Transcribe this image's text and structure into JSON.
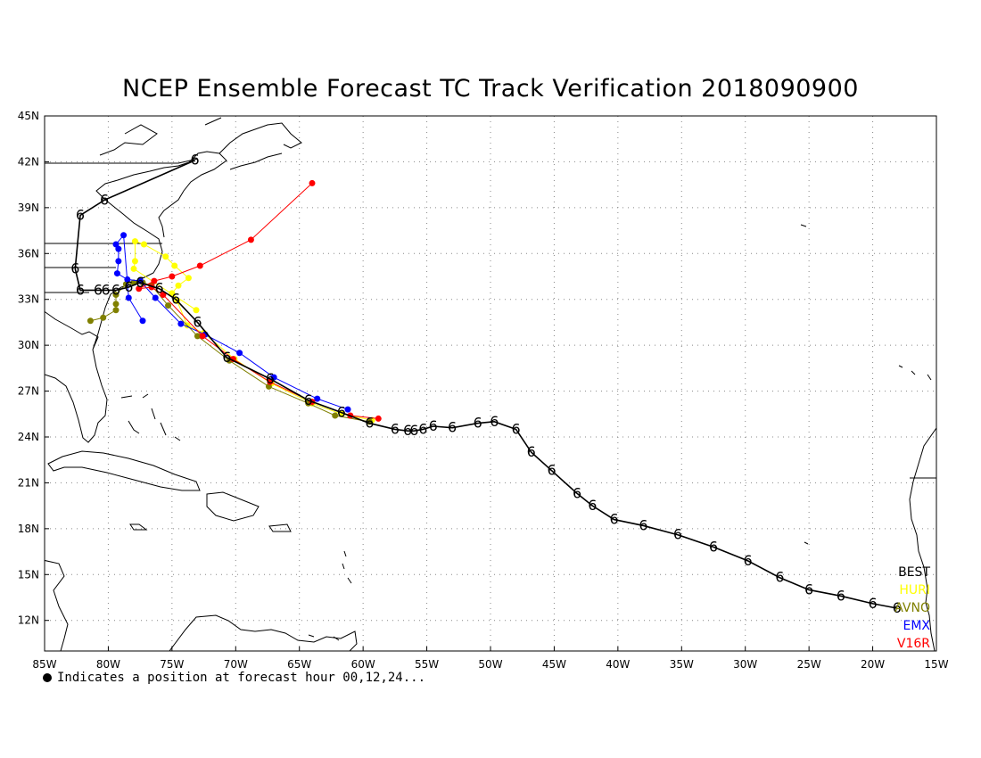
{
  "chart_data": {
    "type": "scatter",
    "title": "NCEP Ensemble Forecast TC Track Verification 2018090900",
    "xlabel": "",
    "ylabel": "",
    "xlim": [
      -85,
      -15
    ],
    "ylim": [
      10,
      45
    ],
    "x_tick_labels": [
      "85W",
      "80W",
      "75W",
      "70W",
      "65W",
      "60W",
      "55W",
      "50W",
      "45W",
      "40W",
      "35W",
      "30W",
      "25W",
      "20W",
      "15W"
    ],
    "y_tick_labels": [
      "12N",
      "15N",
      "18N",
      "21N",
      "24N",
      "27N",
      "30N",
      "33N",
      "36N",
      "39N",
      "42N",
      "45N"
    ],
    "grid": true,
    "legend_position": "bottom-right",
    "footnote": "Indicates a position at forecast hour 00,12,24...",
    "series": [
      {
        "name": "BEST",
        "color": "#000000",
        "points": [
          [
            -18.1,
            12.8
          ],
          [
            -20.0,
            13.1
          ],
          [
            -22.5,
            13.6
          ],
          [
            -25.0,
            14.0
          ],
          [
            -27.3,
            14.8
          ],
          [
            -29.8,
            15.9
          ],
          [
            -32.5,
            16.8
          ],
          [
            -35.3,
            17.6
          ],
          [
            -38.0,
            18.2
          ],
          [
            -40.3,
            18.6
          ],
          [
            -42.0,
            19.5
          ],
          [
            -43.2,
            20.3
          ],
          [
            -45.2,
            21.8
          ],
          [
            -46.8,
            23.0
          ],
          [
            -48.0,
            24.5
          ],
          [
            -49.7,
            25.0
          ],
          [
            -51.0,
            24.9
          ],
          [
            -53.0,
            24.6
          ],
          [
            -54.5,
            24.7
          ],
          [
            -55.3,
            24.5
          ],
          [
            -56.0,
            24.4
          ],
          [
            -56.5,
            24.4
          ],
          [
            -57.5,
            24.5
          ],
          [
            -59.5,
            24.9
          ],
          [
            -61.7,
            25.6
          ],
          [
            -64.3,
            26.4
          ],
          [
            -67.3,
            27.8
          ],
          [
            -70.7,
            29.2
          ],
          [
            -73.0,
            31.5
          ],
          [
            -74.7,
            33.0
          ],
          [
            -76.0,
            33.7
          ],
          [
            -77.5,
            34.1
          ],
          [
            -78.4,
            33.8
          ],
          [
            -79.4,
            33.6
          ],
          [
            -80.2,
            33.6
          ],
          [
            -80.8,
            33.6
          ],
          [
            -82.2,
            33.6
          ],
          [
            -82.6,
            35.0
          ],
          [
            -82.2,
            38.5
          ],
          [
            -80.3,
            39.5
          ],
          [
            -73.2,
            42.1
          ]
        ]
      },
      {
        "name": "HURI",
        "color": "#ffff00",
        "points": [
          [
            -59.3,
            25.1
          ],
          [
            -61.7,
            25.5
          ],
          [
            -64.0,
            26.2
          ],
          [
            -67.2,
            27.5
          ],
          [
            -70.1,
            29.1
          ],
          [
            -72.5,
            30.8
          ],
          [
            -73.8,
            31.3
          ],
          [
            -74.6,
            32.9
          ],
          [
            -75.0,
            33.4
          ],
          [
            -74.5,
            33.9
          ],
          [
            -73.7,
            34.4
          ],
          [
            -74.8,
            35.2
          ],
          [
            -75.5,
            35.8
          ],
          [
            -77.2,
            36.6
          ],
          [
            -77.9,
            36.8
          ],
          [
            -77.9,
            35.5
          ],
          [
            -78.0,
            35.0
          ],
          [
            -73.1,
            32.3
          ]
        ]
      },
      {
        "name": "AVNO",
        "color": "#808000",
        "points": [
          [
            -59.5,
            25.0
          ],
          [
            -62.2,
            25.4
          ],
          [
            -64.3,
            26.2
          ],
          [
            -67.4,
            27.3
          ],
          [
            -70.5,
            29.0
          ],
          [
            -73.0,
            30.6
          ],
          [
            -75.3,
            32.6
          ],
          [
            -76.6,
            33.9
          ],
          [
            -77.3,
            34.1
          ],
          [
            -78.0,
            34.1
          ],
          [
            -78.6,
            34.0
          ],
          [
            -79.4,
            33.3
          ],
          [
            -79.4,
            32.7
          ],
          [
            -79.4,
            32.3
          ],
          [
            -80.4,
            31.8
          ],
          [
            -81.4,
            31.6
          ]
        ]
      },
      {
        "name": "EMX",
        "color": "#0000ff",
        "points": [
          [
            -61.2,
            25.8
          ],
          [
            -63.6,
            26.5
          ],
          [
            -67.0,
            27.9
          ],
          [
            -69.7,
            29.5
          ],
          [
            -72.4,
            30.7
          ],
          [
            -74.3,
            31.4
          ],
          [
            -76.3,
            33.1
          ],
          [
            -77.5,
            34.2
          ],
          [
            -78.5,
            34.3
          ],
          [
            -79.3,
            34.7
          ],
          [
            -79.2,
            35.5
          ],
          [
            -79.2,
            36.3
          ],
          [
            -79.4,
            36.6
          ],
          [
            -78.8,
            37.2
          ],
          [
            -78.4,
            33.1
          ],
          [
            -77.3,
            31.6
          ]
        ]
      },
      {
        "name": "V16R",
        "color": "#ff0000",
        "points": [
          [
            -58.8,
            25.2
          ],
          [
            -61.0,
            25.4
          ],
          [
            -64.0,
            26.3
          ],
          [
            -67.3,
            27.6
          ],
          [
            -70.2,
            29.1
          ],
          [
            -72.6,
            30.6
          ],
          [
            -75.7,
            33.3
          ],
          [
            -76.6,
            33.8
          ],
          [
            -77.6,
            33.7
          ],
          [
            -76.4,
            34.2
          ],
          [
            -75.0,
            34.5
          ],
          [
            -72.8,
            35.2
          ],
          [
            -68.8,
            36.9
          ],
          [
            -64.0,
            40.6
          ]
        ]
      }
    ]
  }
}
